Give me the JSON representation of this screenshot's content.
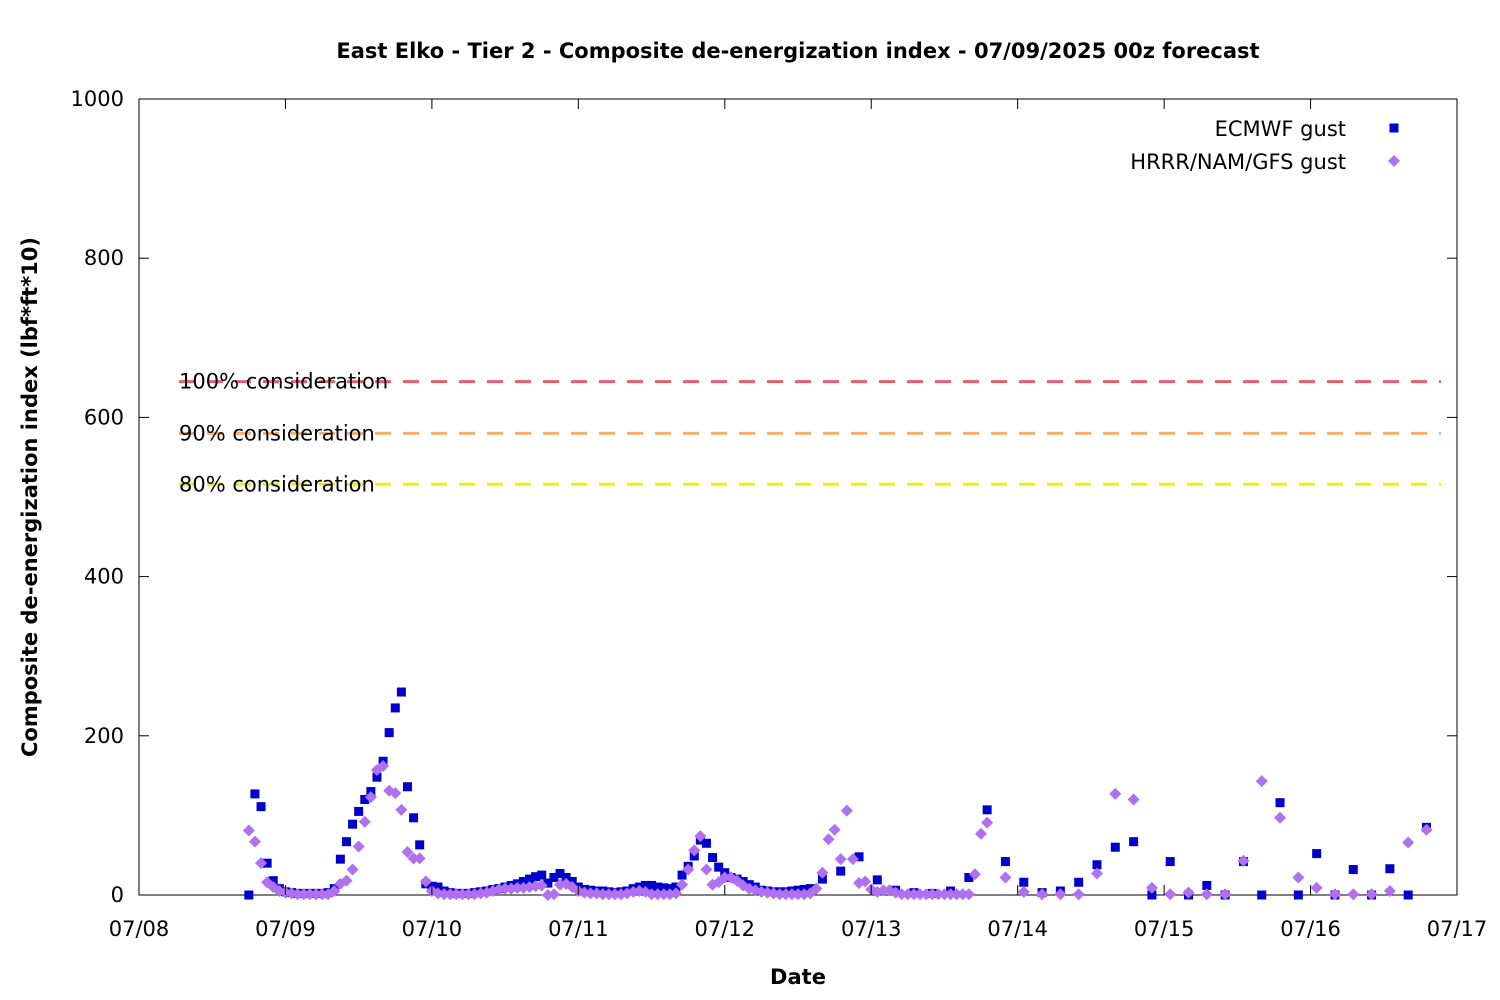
{
  "chart_data": {
    "type": "scatter",
    "title": "East Elko - Tier 2 - Composite de-energization index - 07/09/2025 00z forecast",
    "xlabel": "Date",
    "ylabel": "Composite de-energization index (lbf*ft*10)",
    "xlim": [
      "07/08",
      "07/17"
    ],
    "ylim": [
      0,
      1000
    ],
    "x_unit": "days (07/08 = 0)",
    "x_ticks": [
      "07/08",
      "07/09",
      "07/10",
      "07/11",
      "07/12",
      "07/13",
      "07/14",
      "07/15",
      "07/16",
      "07/17"
    ],
    "y_ticks": [
      0,
      200,
      400,
      600,
      800,
      1000
    ],
    "legend_position": "top-right",
    "grid": false,
    "thresholds": [
      {
        "label": "100% consideration",
        "value": 645,
        "color": "#e06070"
      },
      {
        "label": "90% consideration",
        "value": 580,
        "color": "#f5b070"
      },
      {
        "label": "80% consideration",
        "value": 516,
        "color": "#f0f000"
      }
    ],
    "series": [
      {
        "name": "ECMWF gust",
        "marker": "square",
        "color": "#0000cc",
        "points": [
          [
            "07/08 18:00",
            0
          ],
          [
            "07/08 19:00",
            127
          ],
          [
            "07/08 20:00",
            111
          ],
          [
            "07/08 21:00",
            40
          ],
          [
            "07/08 22:00",
            18
          ],
          [
            "07/08 23:00",
            8
          ],
          [
            "07/09 00:00",
            4
          ],
          [
            "07/09 01:00",
            3
          ],
          [
            "07/09 02:00",
            2
          ],
          [
            "07/09 03:00",
            2
          ],
          [
            "07/09 04:00",
            2
          ],
          [
            "07/09 05:00",
            2
          ],
          [
            "07/09 06:00",
            2
          ],
          [
            "07/09 07:00",
            3
          ],
          [
            "07/09 08:00",
            8
          ],
          [
            "07/09 09:00",
            45
          ],
          [
            "07/09 10:00",
            67
          ],
          [
            "07/09 11:00",
            89
          ],
          [
            "07/09 12:00",
            105
          ],
          [
            "07/09 13:00",
            120
          ],
          [
            "07/09 14:00",
            130
          ],
          [
            "07/09 15:00",
            148
          ],
          [
            "07/09 16:00",
            168
          ],
          [
            "07/09 17:00",
            204
          ],
          [
            "07/09 18:00",
            235
          ],
          [
            "07/09 19:00",
            255
          ],
          [
            "07/09 20:00",
            136
          ],
          [
            "07/09 21:00",
            97
          ],
          [
            "07/09 22:00",
            63
          ],
          [
            "07/09 23:00",
            14
          ],
          [
            "07/10 00:00",
            11
          ],
          [
            "07/10 01:00",
            10
          ],
          [
            "07/10 02:00",
            5
          ],
          [
            "07/10 03:00",
            3
          ],
          [
            "07/10 04:00",
            2
          ],
          [
            "07/10 05:00",
            2
          ],
          [
            "07/10 06:00",
            2
          ],
          [
            "07/10 07:00",
            3
          ],
          [
            "07/10 08:00",
            4
          ],
          [
            "07/10 09:00",
            5
          ],
          [
            "07/10 10:00",
            7
          ],
          [
            "07/10 11:00",
            8
          ],
          [
            "07/10 12:00",
            10
          ],
          [
            "07/10 13:00",
            12
          ],
          [
            "07/10 14:00",
            14
          ],
          [
            "07/10 15:00",
            17
          ],
          [
            "07/10 16:00",
            20
          ],
          [
            "07/10 17:00",
            23
          ],
          [
            "07/10 18:00",
            25
          ],
          [
            "07/10 19:00",
            15
          ],
          [
            "07/10 20:00",
            22
          ],
          [
            "07/10 21:00",
            27
          ],
          [
            "07/10 22:00",
            22
          ],
          [
            "07/10 23:00",
            17
          ],
          [
            "07/11 00:00",
            10
          ],
          [
            "07/11 01:00",
            7
          ],
          [
            "07/11 02:00",
            6
          ],
          [
            "07/11 03:00",
            5
          ],
          [
            "07/11 04:00",
            5
          ],
          [
            "07/11 05:00",
            4
          ],
          [
            "07/11 06:00",
            3
          ],
          [
            "07/11 07:00",
            4
          ],
          [
            "07/11 08:00",
            5
          ],
          [
            "07/11 09:00",
            8
          ],
          [
            "07/11 10:00",
            10
          ],
          [
            "07/11 11:00",
            12
          ],
          [
            "07/11 12:00",
            12
          ],
          [
            "07/11 13:00",
            10
          ],
          [
            "07/11 14:00",
            9
          ],
          [
            "07/11 15:00",
            8
          ],
          [
            "07/11 16:00",
            10
          ],
          [
            "07/11 17:00",
            25
          ],
          [
            "07/11 18:00",
            36
          ],
          [
            "07/11 19:00",
            49
          ],
          [
            "07/11 20:00",
            69
          ],
          [
            "07/11 21:00",
            65
          ],
          [
            "07/11 22:00",
            47
          ],
          [
            "07/11 23:00",
            35
          ],
          [
            "07/12 00:00",
            28
          ],
          [
            "07/12 01:00",
            22
          ],
          [
            "07/12 02:00",
            20
          ],
          [
            "07/12 03:00",
            17
          ],
          [
            "07/12 04:00",
            13
          ],
          [
            "07/12 05:00",
            10
          ],
          [
            "07/12 06:00",
            6
          ],
          [
            "07/12 07:00",
            5
          ],
          [
            "07/12 08:00",
            4
          ],
          [
            "07/12 09:00",
            4
          ],
          [
            "07/12 10:00",
            4
          ],
          [
            "07/12 11:00",
            5
          ],
          [
            "07/12 12:00",
            6
          ],
          [
            "07/12 13:00",
            7
          ],
          [
            "07/12 14:00",
            8
          ],
          [
            "07/12 16:00",
            20
          ],
          [
            "07/12 19:00",
            30
          ],
          [
            "07/12 22:00",
            48
          ],
          [
            "07/13 01:00",
            19
          ],
          [
            "07/13 04:00",
            6
          ],
          [
            "07/13 07:00",
            3
          ],
          [
            "07/13 10:00",
            2
          ],
          [
            "07/13 13:00",
            5
          ],
          [
            "07/13 16:00",
            22
          ],
          [
            "07/13 19:00",
            107
          ],
          [
            "07/13 22:00",
            42
          ],
          [
            "07/14 01:00",
            16
          ],
          [
            "07/14 04:00",
            3
          ],
          [
            "07/14 07:00",
            5
          ],
          [
            "07/14 10:00",
            16
          ],
          [
            "07/14 13:00",
            38
          ],
          [
            "07/14 16:00",
            60
          ],
          [
            "07/14 19:00",
            67
          ],
          [
            "07/14 22:00",
            0
          ],
          [
            "07/15 01:00",
            42
          ],
          [
            "07/15 04:00",
            0
          ],
          [
            "07/15 07:00",
            12
          ],
          [
            "07/15 10:00",
            0
          ],
          [
            "07/15 13:00",
            42
          ],
          [
            "07/15 16:00",
            0
          ],
          [
            "07/15 19:00",
            116
          ],
          [
            "07/15 22:00",
            0
          ],
          [
            "07/16 01:00",
            52
          ],
          [
            "07/16 04:00",
            0
          ],
          [
            "07/16 07:00",
            32
          ],
          [
            "07/16 10:00",
            0
          ],
          [
            "07/16 13:00",
            33
          ],
          [
            "07/16 16:00",
            0
          ],
          [
            "07/16 19:00",
            85
          ]
        ]
      },
      {
        "name": "HRRR/NAM/GFS gust",
        "marker": "diamond",
        "color": "#b070f0",
        "points": [
          [
            "07/08 18:00",
            81
          ],
          [
            "07/08 19:00",
            67
          ],
          [
            "07/08 20:00",
            40
          ],
          [
            "07/08 21:00",
            16
          ],
          [
            "07/08 22:00",
            10
          ],
          [
            "07/08 23:00",
            5
          ],
          [
            "07/09 00:00",
            3
          ],
          [
            "07/09 01:00",
            2
          ],
          [
            "07/09 02:00",
            1
          ],
          [
            "07/09 03:00",
            1
          ],
          [
            "07/09 04:00",
            1
          ],
          [
            "07/09 05:00",
            1
          ],
          [
            "07/09 06:00",
            1
          ],
          [
            "07/09 07:00",
            1
          ],
          [
            "07/09 08:00",
            5
          ],
          [
            "07/09 09:00",
            14
          ],
          [
            "07/09 10:00",
            18
          ],
          [
            "07/09 11:00",
            32
          ],
          [
            "07/09 12:00",
            61
          ],
          [
            "07/09 13:00",
            92
          ],
          [
            "07/09 14:00",
            123
          ],
          [
            "07/09 15:00",
            157
          ],
          [
            "07/09 16:00",
            162
          ],
          [
            "07/09 17:00",
            131
          ],
          [
            "07/09 18:00",
            128
          ],
          [
            "07/09 19:00",
            107
          ],
          [
            "07/09 20:00",
            54
          ],
          [
            "07/09 21:00",
            46
          ],
          [
            "07/09 22:00",
            46
          ],
          [
            "07/09 23:00",
            17
          ],
          [
            "07/10 00:00",
            5
          ],
          [
            "07/10 01:00",
            2
          ],
          [
            "07/10 02:00",
            1
          ],
          [
            "07/10 03:00",
            1
          ],
          [
            "07/10 04:00",
            1
          ],
          [
            "07/10 05:00",
            1
          ],
          [
            "07/10 06:00",
            1
          ],
          [
            "07/10 07:00",
            1
          ],
          [
            "07/10 08:00",
            2
          ],
          [
            "07/10 09:00",
            3
          ],
          [
            "07/10 10:00",
            5
          ],
          [
            "07/10 11:00",
            7
          ],
          [
            "07/10 12:00",
            8
          ],
          [
            "07/10 13:00",
            8
          ],
          [
            "07/10 14:00",
            9
          ],
          [
            "07/10 15:00",
            9
          ],
          [
            "07/10 16:00",
            10
          ],
          [
            "07/10 17:00",
            11
          ],
          [
            "07/10 18:00",
            12
          ],
          [
            "07/10 19:00",
            0
          ],
          [
            "07/10 20:00",
            1
          ],
          [
            "07/10 21:00",
            13
          ],
          [
            "07/10 22:00",
            14
          ],
          [
            "07/10 23:00",
            10
          ],
          [
            "07/11 00:00",
            5
          ],
          [
            "07/11 01:00",
            3
          ],
          [
            "07/11 02:00",
            2
          ],
          [
            "07/11 03:00",
            2
          ],
          [
            "07/11 04:00",
            1
          ],
          [
            "07/11 05:00",
            1
          ],
          [
            "07/11 06:00",
            1
          ],
          [
            "07/11 07:00",
            1
          ],
          [
            "07/11 08:00",
            2
          ],
          [
            "07/11 09:00",
            4
          ],
          [
            "07/11 10:00",
            5
          ],
          [
            "07/11 11:00",
            4
          ],
          [
            "07/11 12:00",
            1
          ],
          [
            "07/11 13:00",
            1
          ],
          [
            "07/11 14:00",
            1
          ],
          [
            "07/11 15:00",
            1
          ],
          [
            "07/11 16:00",
            2
          ],
          [
            "07/11 17:00",
            13
          ],
          [
            "07/11 18:00",
            32
          ],
          [
            "07/11 19:00",
            56
          ],
          [
            "07/11 20:00",
            74
          ],
          [
            "07/11 21:00",
            32
          ],
          [
            "07/11 22:00",
            13
          ],
          [
            "07/11 23:00",
            16
          ],
          [
            "07/12 00:00",
            22
          ],
          [
            "07/12 01:00",
            22
          ],
          [
            "07/12 02:00",
            18
          ],
          [
            "07/12 03:00",
            12
          ],
          [
            "07/12 04:00",
            8
          ],
          [
            "07/12 05:00",
            6
          ],
          [
            "07/12 06:00",
            4
          ],
          [
            "07/12 07:00",
            3
          ],
          [
            "07/12 08:00",
            2
          ],
          [
            "07/12 09:00",
            1
          ],
          [
            "07/12 10:00",
            1
          ],
          [
            "07/12 11:00",
            1
          ],
          [
            "07/12 12:00",
            1
          ],
          [
            "07/12 13:00",
            1
          ],
          [
            "07/12 14:00",
            2
          ],
          [
            "07/12 15:00",
            8
          ],
          [
            "07/12 16:00",
            28
          ],
          [
            "07/12 17:00",
            70
          ],
          [
            "07/12 18:00",
            82
          ],
          [
            "07/12 19:00",
            45
          ],
          [
            "07/12 20:00",
            106
          ],
          [
            "07/12 21:00",
            45
          ],
          [
            "07/12 22:00",
            15
          ],
          [
            "07/12 23:00",
            17
          ],
          [
            "07/13 00:00",
            7
          ],
          [
            "07/13 01:00",
            4
          ],
          [
            "07/13 02:00",
            6
          ],
          [
            "07/13 03:00",
            6
          ],
          [
            "07/13 04:00",
            3
          ],
          [
            "07/13 05:00",
            1
          ],
          [
            "07/13 06:00",
            1
          ],
          [
            "07/13 07:00",
            1
          ],
          [
            "07/13 08:00",
            1
          ],
          [
            "07/13 09:00",
            1
          ],
          [
            "07/13 10:00",
            1
          ],
          [
            "07/13 11:00",
            1
          ],
          [
            "07/13 12:00",
            1
          ],
          [
            "07/13 13:00",
            1
          ],
          [
            "07/13 14:00",
            1
          ],
          [
            "07/13 15:00",
            1
          ],
          [
            "07/13 16:00",
            1
          ],
          [
            "07/13 17:00",
            26
          ],
          [
            "07/13 18:00",
            77
          ],
          [
            "07/13 19:00",
            91
          ],
          [
            "07/13 22:00",
            22
          ],
          [
            "07/14 01:00",
            4
          ],
          [
            "07/14 04:00",
            1
          ],
          [
            "07/14 07:00",
            1
          ],
          [
            "07/14 10:00",
            1
          ],
          [
            "07/14 13:00",
            27
          ],
          [
            "07/14 16:00",
            127
          ],
          [
            "07/14 19:00",
            120
          ],
          [
            "07/14 22:00",
            9
          ],
          [
            "07/15 01:00",
            1
          ],
          [
            "07/15 04:00",
            3
          ],
          [
            "07/15 07:00",
            1
          ],
          [
            "07/15 10:00",
            1
          ],
          [
            "07/15 13:00",
            43
          ],
          [
            "07/15 16:00",
            143
          ],
          [
            "07/15 19:00",
            97
          ],
          [
            "07/15 22:00",
            22
          ],
          [
            "07/16 01:00",
            9
          ],
          [
            "07/16 04:00",
            1
          ],
          [
            "07/16 07:00",
            1
          ],
          [
            "07/16 10:00",
            1
          ],
          [
            "07/16 13:00",
            5
          ],
          [
            "07/16 16:00",
            66
          ],
          [
            "07/16 19:00",
            82
          ]
        ]
      }
    ]
  },
  "colors": {
    "axis": "#000000",
    "background": "#ffffff"
  }
}
